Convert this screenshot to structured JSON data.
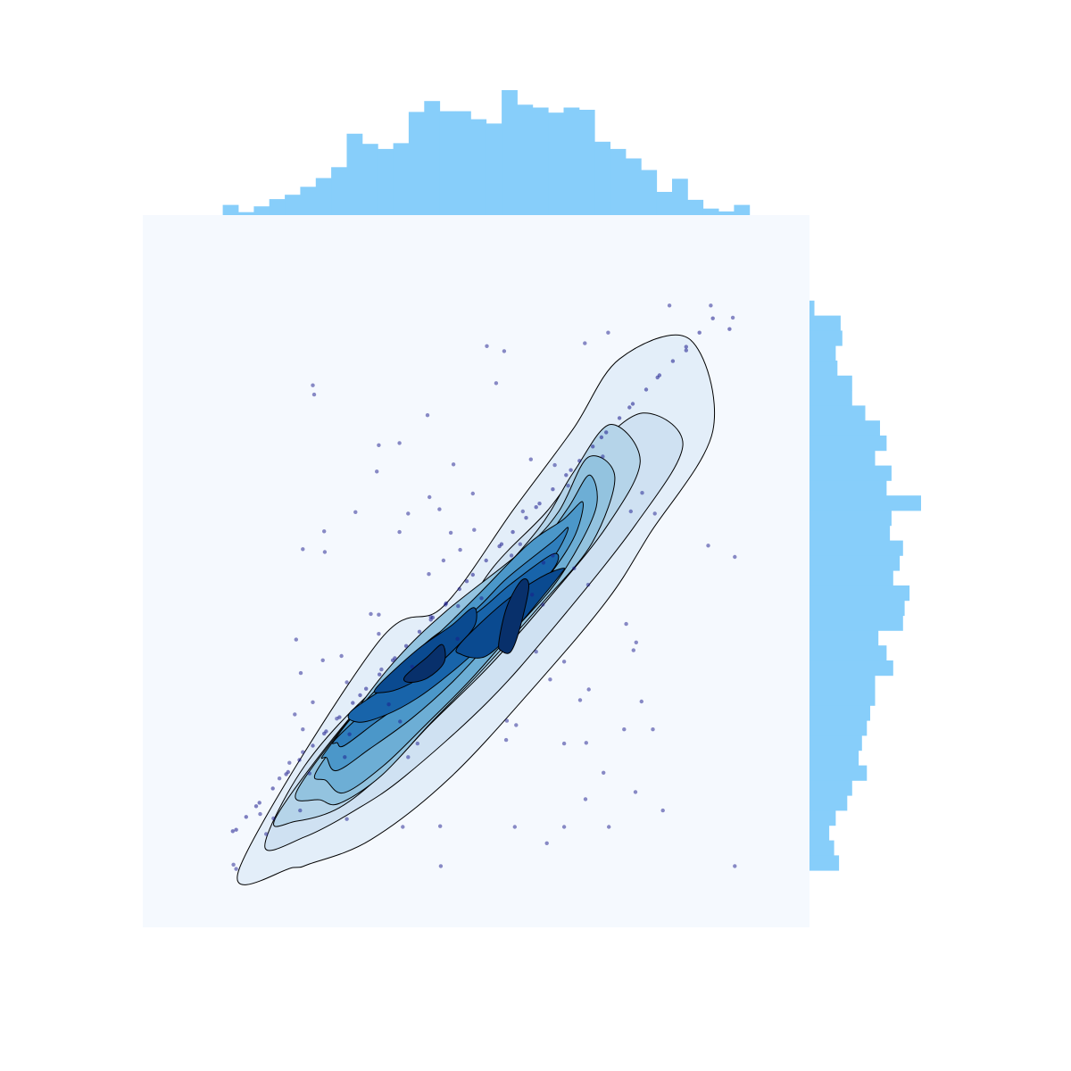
{
  "chart_data": {
    "type": "scatter",
    "kind": "joint plot: 2D KDE filled contours with scatter overlay and marginal histograms",
    "title": "",
    "xlabel": "",
    "ylabel": "",
    "axes_visible": false,
    "grid": false,
    "xlim": [
      0,
      10
    ],
    "ylim": [
      0,
      10
    ],
    "colors": {
      "plot_background": "#f5f9fe",
      "contour_fills": [
        "#e3eef9",
        "#cfe1f2",
        "#b5d4e9",
        "#93c3df",
        "#6daed5",
        "#4b97c9",
        "#2f7ebc",
        "#1864aa",
        "#0a4a90",
        "#08306b"
      ],
      "contour_lines": "#000000",
      "points": "#1a1a8c",
      "marginal_bars": "#87cefa"
    },
    "contours": [
      {
        "level": 1,
        "points": [
          [
            1.45,
            0.83
          ],
          [
            3.52,
            3.99
          ],
          [
            4.5,
            4.5
          ],
          [
            5.57,
            5.88
          ],
          [
            6.45,
            6.99
          ],
          [
            7.15,
            7.98
          ],
          [
            8.2,
            8.26
          ],
          [
            8.55,
            6.97
          ],
          [
            7.6,
            5.52
          ],
          [
            6.98,
            4.61
          ],
          [
            5.95,
            3.46
          ],
          [
            4.62,
            2.11
          ],
          [
            3.42,
            1.23
          ],
          [
            2.5,
            0.89
          ],
          [
            2.26,
            0.84
          ]
        ]
      },
      {
        "level": 2,
        "points": [
          [
            1.83,
            1.14
          ],
          [
            2.43,
            2.27
          ],
          [
            3.46,
            3.33
          ],
          [
            4.43,
            3.95
          ],
          [
            5.26,
            5.06
          ],
          [
            6.06,
            5.84
          ],
          [
            6.74,
            6.67
          ],
          [
            7.5,
            7.22
          ],
          [
            8.1,
            6.77
          ],
          [
            7.39,
            5.65
          ],
          [
            6.2,
            4.25
          ],
          [
            5.18,
            3.17
          ],
          [
            3.93,
            2.12
          ],
          [
            3.18,
            1.64
          ],
          [
            2.43,
            1.27
          ]
        ]
      },
      {
        "level": 3,
        "points": [
          [
            2.0,
            1.55
          ],
          [
            3.15,
            2.99
          ],
          [
            4.2,
            3.94
          ],
          [
            4.95,
            4.57
          ],
          [
            5.93,
            5.59
          ],
          [
            6.46,
            6.39
          ],
          [
            7.01,
            7.06
          ],
          [
            7.46,
            6.54
          ],
          [
            6.96,
            5.63
          ],
          [
            6.1,
            4.63
          ],
          [
            5.22,
            3.69
          ],
          [
            4.32,
            2.86
          ],
          [
            3.65,
            2.2
          ],
          [
            2.95,
            1.68
          ],
          [
            2.3,
            1.49
          ]
        ]
      },
      {
        "level": 4,
        "points": [
          [
            2.3,
            1.89
          ],
          [
            3.15,
            2.99
          ],
          [
            3.81,
            3.77
          ],
          [
            4.55,
            4.44
          ],
          [
            5.72,
            5.31
          ],
          [
            6.24,
            5.84
          ],
          [
            6.68,
            6.6
          ],
          [
            7.08,
            6.32
          ],
          [
            6.74,
            5.4
          ],
          [
            6.0,
            4.56
          ],
          [
            5.11,
            3.63
          ],
          [
            4.3,
            2.85
          ],
          [
            3.58,
            2.13
          ],
          [
            2.95,
            1.74
          ],
          [
            2.66,
            1.79
          ]
        ]
      },
      {
        "level": 5,
        "points": [
          [
            2.6,
            2.18
          ],
          [
            3.29,
            3.03
          ],
          [
            4.23,
            3.98
          ],
          [
            5.12,
            4.56
          ],
          [
            5.92,
            5.31
          ],
          [
            6.38,
            5.89
          ],
          [
            6.7,
            6.35
          ],
          [
            6.79,
            5.86
          ],
          [
            6.25,
            4.91
          ],
          [
            5.55,
            4.15
          ],
          [
            4.9,
            3.46
          ],
          [
            4.25,
            2.85
          ],
          [
            3.61,
            2.27
          ],
          [
            3.02,
            1.89
          ],
          [
            2.75,
            2.06
          ]
        ]
      },
      {
        "level": 6,
        "points": [
          [
            2.73,
            2.45
          ],
          [
            3.45,
            3.29
          ],
          [
            4.36,
            4.06
          ],
          [
            5.01,
            4.65
          ],
          [
            5.78,
            5.38
          ],
          [
            6.3,
            5.72
          ],
          [
            6.6,
            5.97
          ],
          [
            6.45,
            5.44
          ],
          [
            5.92,
            4.73
          ],
          [
            5.28,
            4.08
          ],
          [
            4.64,
            3.44
          ],
          [
            4.03,
            2.93
          ],
          [
            3.41,
            2.51
          ],
          [
            2.91,
            2.2
          ],
          [
            2.76,
            2.38
          ]
        ]
      },
      {
        "level": 7,
        "points": [
          [
            2.9,
            2.65
          ],
          [
            3.67,
            3.34
          ],
          [
            4.14,
            3.83
          ],
          [
            4.99,
            4.46
          ],
          [
            5.46,
            4.9
          ],
          [
            6.14,
            5.41
          ],
          [
            6.38,
            5.61
          ],
          [
            6.18,
            5.22
          ],
          [
            5.7,
            4.68
          ],
          [
            5.02,
            4.08
          ],
          [
            4.39,
            3.6
          ],
          [
            3.96,
            3.2
          ],
          [
            3.48,
            2.87
          ],
          [
            3.02,
            2.55
          ],
          [
            2.92,
            2.59
          ]
        ]
      },
      {
        "level": 8,
        "points": [
          [
            3.12,
            3.03
          ],
          [
            3.9,
            3.54
          ],
          [
            4.39,
            3.99
          ],
          [
            5.07,
            4.46
          ],
          [
            5.52,
            4.82
          ],
          [
            6.15,
            5.24
          ],
          [
            6.18,
            5.06
          ],
          [
            5.67,
            4.53
          ],
          [
            5.1,
            3.97
          ],
          [
            4.63,
            3.58
          ],
          [
            4.12,
            3.22
          ],
          [
            3.64,
            2.98
          ],
          [
            3.24,
            2.88
          ]
        ]
      },
      {
        "level": 9,
        "points": [
          [
            3.5,
            3.36
          ],
          [
            4.12,
            3.9
          ],
          [
            4.62,
            4.23
          ],
          [
            4.96,
            4.49
          ],
          [
            4.98,
            4.24
          ],
          [
            4.7,
            3.93
          ],
          [
            4.3,
            3.59
          ],
          [
            3.92,
            3.38
          ],
          [
            3.62,
            3.3
          ]
        ]
      },
      {
        "level": 9,
        "points": [
          [
            4.75,
            3.97
          ],
          [
            5.4,
            4.55
          ],
          [
            5.96,
            4.91
          ],
          [
            6.3,
            5.04
          ],
          [
            6.26,
            4.95
          ],
          [
            5.87,
            4.5
          ],
          [
            5.51,
            4.11
          ],
          [
            5.13,
            3.8
          ],
          [
            4.78,
            3.83
          ]
        ]
      },
      {
        "level": 10,
        "points": [
          [
            3.93,
            3.52
          ],
          [
            4.26,
            3.79
          ],
          [
            4.49,
            3.97
          ],
          [
            4.52,
            3.72
          ],
          [
            4.27,
            3.5
          ],
          [
            4.0,
            3.44
          ]
        ]
      },
      {
        "level": 10,
        "points": [
          [
            5.34,
            4.0
          ],
          [
            5.46,
            4.5
          ],
          [
            5.68,
            4.87
          ],
          [
            5.79,
            4.78
          ],
          [
            5.65,
            4.18
          ],
          [
            5.52,
            3.87
          ],
          [
            5.38,
            3.88
          ]
        ]
      }
    ],
    "diagonal_points": [
      [
        1.35,
        1.35
      ],
      [
        1.55,
        1.55
      ],
      [
        1.75,
        1.75
      ],
      [
        1.95,
        1.95
      ],
      [
        2.15,
        2.15
      ],
      [
        2.35,
        2.35
      ],
      [
        2.55,
        2.55
      ],
      [
        2.75,
        2.75
      ],
      [
        2.95,
        2.95
      ],
      [
        3.15,
        3.15
      ],
      [
        3.35,
        3.35
      ],
      [
        3.55,
        3.55
      ],
      [
        3.75,
        3.75
      ],
      [
        3.95,
        3.95
      ],
      [
        4.15,
        4.15
      ],
      [
        4.35,
        4.35
      ],
      [
        4.55,
        4.55
      ],
      [
        4.75,
        4.75
      ],
      [
        4.95,
        4.95
      ],
      [
        5.15,
        5.15
      ],
      [
        5.35,
        5.35
      ],
      [
        5.55,
        5.55
      ],
      [
        5.75,
        5.75
      ],
      [
        5.95,
        5.95
      ],
      [
        6.15,
        6.15
      ],
      [
        6.35,
        6.35
      ],
      [
        6.55,
        6.55
      ],
      [
        6.75,
        6.75
      ],
      [
        6.95,
        6.95
      ],
      [
        7.15,
        7.15
      ],
      [
        7.35,
        7.35
      ],
      [
        7.55,
        7.55
      ],
      [
        7.75,
        7.75
      ],
      [
        7.95,
        7.95
      ],
      [
        8.15,
        8.15
      ],
      [
        8.35,
        8.35
      ],
      [
        8.55,
        8.55
      ],
      [
        8.8,
        8.4
      ],
      [
        8.15,
        8.1
      ],
      [
        7.72,
        7.72
      ],
      [
        7.3,
        7.3
      ],
      [
        6.88,
        6.88
      ],
      [
        6.42,
        6.42
      ],
      [
        5.9,
        5.9
      ],
      [
        5.38,
        5.38
      ],
      [
        4.86,
        4.86
      ],
      [
        4.32,
        4.32
      ],
      [
        3.78,
        3.78
      ],
      [
        3.26,
        3.26
      ],
      [
        2.72,
        2.72
      ],
      [
        2.18,
        2.18
      ],
      [
        1.7,
        1.7
      ],
      [
        1.4,
        1.37
      ]
    ],
    "scatter_points": [
      [
        2.55,
        7.61
      ],
      [
        2.57,
        7.48
      ],
      [
        5.16,
        8.16
      ],
      [
        5.42,
        8.09
      ],
      [
        5.3,
        7.64
      ],
      [
        6.63,
        8.2
      ],
      [
        6.98,
        8.35
      ],
      [
        7.9,
        8.73
      ],
      [
        8.52,
        8.73
      ],
      [
        8.85,
        8.56
      ],
      [
        4.27,
        7.19
      ],
      [
        3.54,
        6.77
      ],
      [
        3.85,
        6.8
      ],
      [
        3.51,
        6.4
      ],
      [
        4.66,
        6.5
      ],
      [
        3.98,
        5.81
      ],
      [
        4.3,
        6.04
      ],
      [
        4.45,
        5.87
      ],
      [
        2.4,
        5.31
      ],
      [
        2.73,
        5.27
      ],
      [
        2.72,
        5.56
      ],
      [
        3.85,
        5.55
      ],
      [
        4.51,
        5.15
      ],
      [
        4.29,
        4.96
      ],
      [
        4.76,
        5.3
      ],
      [
        8.48,
        5.36
      ],
      [
        8.88,
        5.2
      ],
      [
        7.68,
        5.81
      ],
      [
        7.49,
        6.1
      ],
      [
        7.32,
        5.84
      ],
      [
        6.38,
        6.2
      ],
      [
        6.9,
        6.61
      ],
      [
        6.47,
        5.04
      ],
      [
        6.68,
        4.81
      ],
      [
        6.0,
        4.53
      ],
      [
        5.84,
        4.67
      ],
      [
        7.25,
        4.26
      ],
      [
        7.4,
        4.0
      ],
      [
        7.36,
        3.89
      ],
      [
        6.56,
        3.19
      ],
      [
        6.69,
        3.34
      ],
      [
        7.48,
        3.17
      ],
      [
        7.65,
        2.78
      ],
      [
        7.22,
        2.78
      ],
      [
        5.46,
        2.9
      ],
      [
        5.6,
        2.84
      ],
      [
        5.45,
        2.63
      ],
      [
        6.32,
        2.58
      ],
      [
        6.65,
        2.59
      ],
      [
        6.91,
        2.17
      ],
      [
        6.64,
        1.8
      ],
      [
        7.39,
        1.9
      ],
      [
        7.8,
        1.64
      ],
      [
        6.99,
        1.41
      ],
      [
        6.32,
        1.41
      ],
      [
        5.58,
        1.41
      ],
      [
        4.46,
        1.42
      ],
      [
        3.9,
        1.41
      ],
      [
        3.06,
        1.52
      ],
      [
        2.36,
        1.64
      ],
      [
        4.47,
        0.86
      ],
      [
        6.06,
        1.18
      ],
      [
        1.36,
        0.88
      ],
      [
        1.4,
        0.82
      ],
      [
        8.88,
        0.86
      ],
      [
        3.42,
        4.4
      ],
      [
        3.54,
        4.39
      ],
      [
        4.32,
        4.36
      ],
      [
        4.54,
        4.53
      ],
      [
        4.73,
        4.51
      ],
      [
        2.3,
        4.04
      ],
      [
        2.7,
        3.75
      ],
      [
        2.98,
        3.81
      ],
      [
        3.54,
        4.12
      ],
      [
        4.72,
        4.05
      ],
      [
        5.9,
        3.87
      ],
      [
        3.06,
        3.44
      ],
      [
        2.55,
        3.16
      ],
      [
        2.91,
        2.93
      ],
      [
        2.28,
        2.99
      ],
      [
        2.4,
        2.78
      ],
      [
        3.1,
        2.71
      ],
      [
        2.4,
        2.46
      ],
      [
        2.2,
        2.31
      ],
      [
        2.05,
        2.09
      ],
      [
        2.5,
        2.16
      ],
      [
        3.98,
        2.39
      ],
      [
        4.12,
        2.58
      ],
      [
        6.32,
        3.73
      ],
      [
        6.11,
        3.48
      ],
      [
        5.08,
        4.62
      ],
      [
        5.53,
        5.22
      ],
      [
        5.66,
        5.38
      ],
      [
        6.01,
        5.12
      ],
      [
        6.15,
        5.22
      ],
      [
        3.19,
        5.83
      ],
      [
        6.18,
        6.49
      ],
      [
        5.7,
        5.84
      ],
      [
        4.97,
        5.58
      ],
      [
        4.62,
        5.54
      ],
      [
        4.95,
        6.09
      ],
      [
        5.82,
        6.57
      ],
      [
        3.69,
        3.13
      ],
      [
        3.86,
        2.89
      ],
      [
        3.58,
        3.62
      ],
      [
        4.04,
        3.66
      ],
      [
        1.76,
        1.59
      ],
      [
        1.96,
        1.53
      ],
      [
        1.85,
        1.31
      ],
      [
        2.37,
        3.57
      ],
      [
        3.03,
        2.39
      ]
    ],
    "marginal_top": {
      "bins": 34,
      "range": [
        1.2,
        9.1
      ],
      "values": [
        1.4,
        0.4,
        1.2,
        2.2,
        2.8,
        3.9,
        5.1,
        6.6,
        11.2,
        9.8,
        9.1,
        9.9,
        14.2,
        15.7,
        14.3,
        14.3,
        13.2,
        12.6,
        17.2,
        15.2,
        14.8,
        14.1,
        14.8,
        14.5,
        10.1,
        9.1,
        7.8,
        6.2,
        3.2,
        5.0,
        2.1,
        0.9,
        0.5,
        1.4
      ]
    },
    "marginal_right": {
      "bins": 38,
      "range": [
        0.8,
        8.8
      ],
      "values": [
        18,
        15,
        12,
        16,
        23,
        26,
        35,
        30,
        32,
        35,
        37,
        40,
        40,
        51,
        47,
        42,
        57,
        58,
        61,
        51,
        55,
        57,
        49,
        50,
        68,
        47,
        50,
        40,
        47,
        43,
        34,
        26,
        26,
        17,
        16,
        20,
        19,
        3
      ]
    }
  }
}
